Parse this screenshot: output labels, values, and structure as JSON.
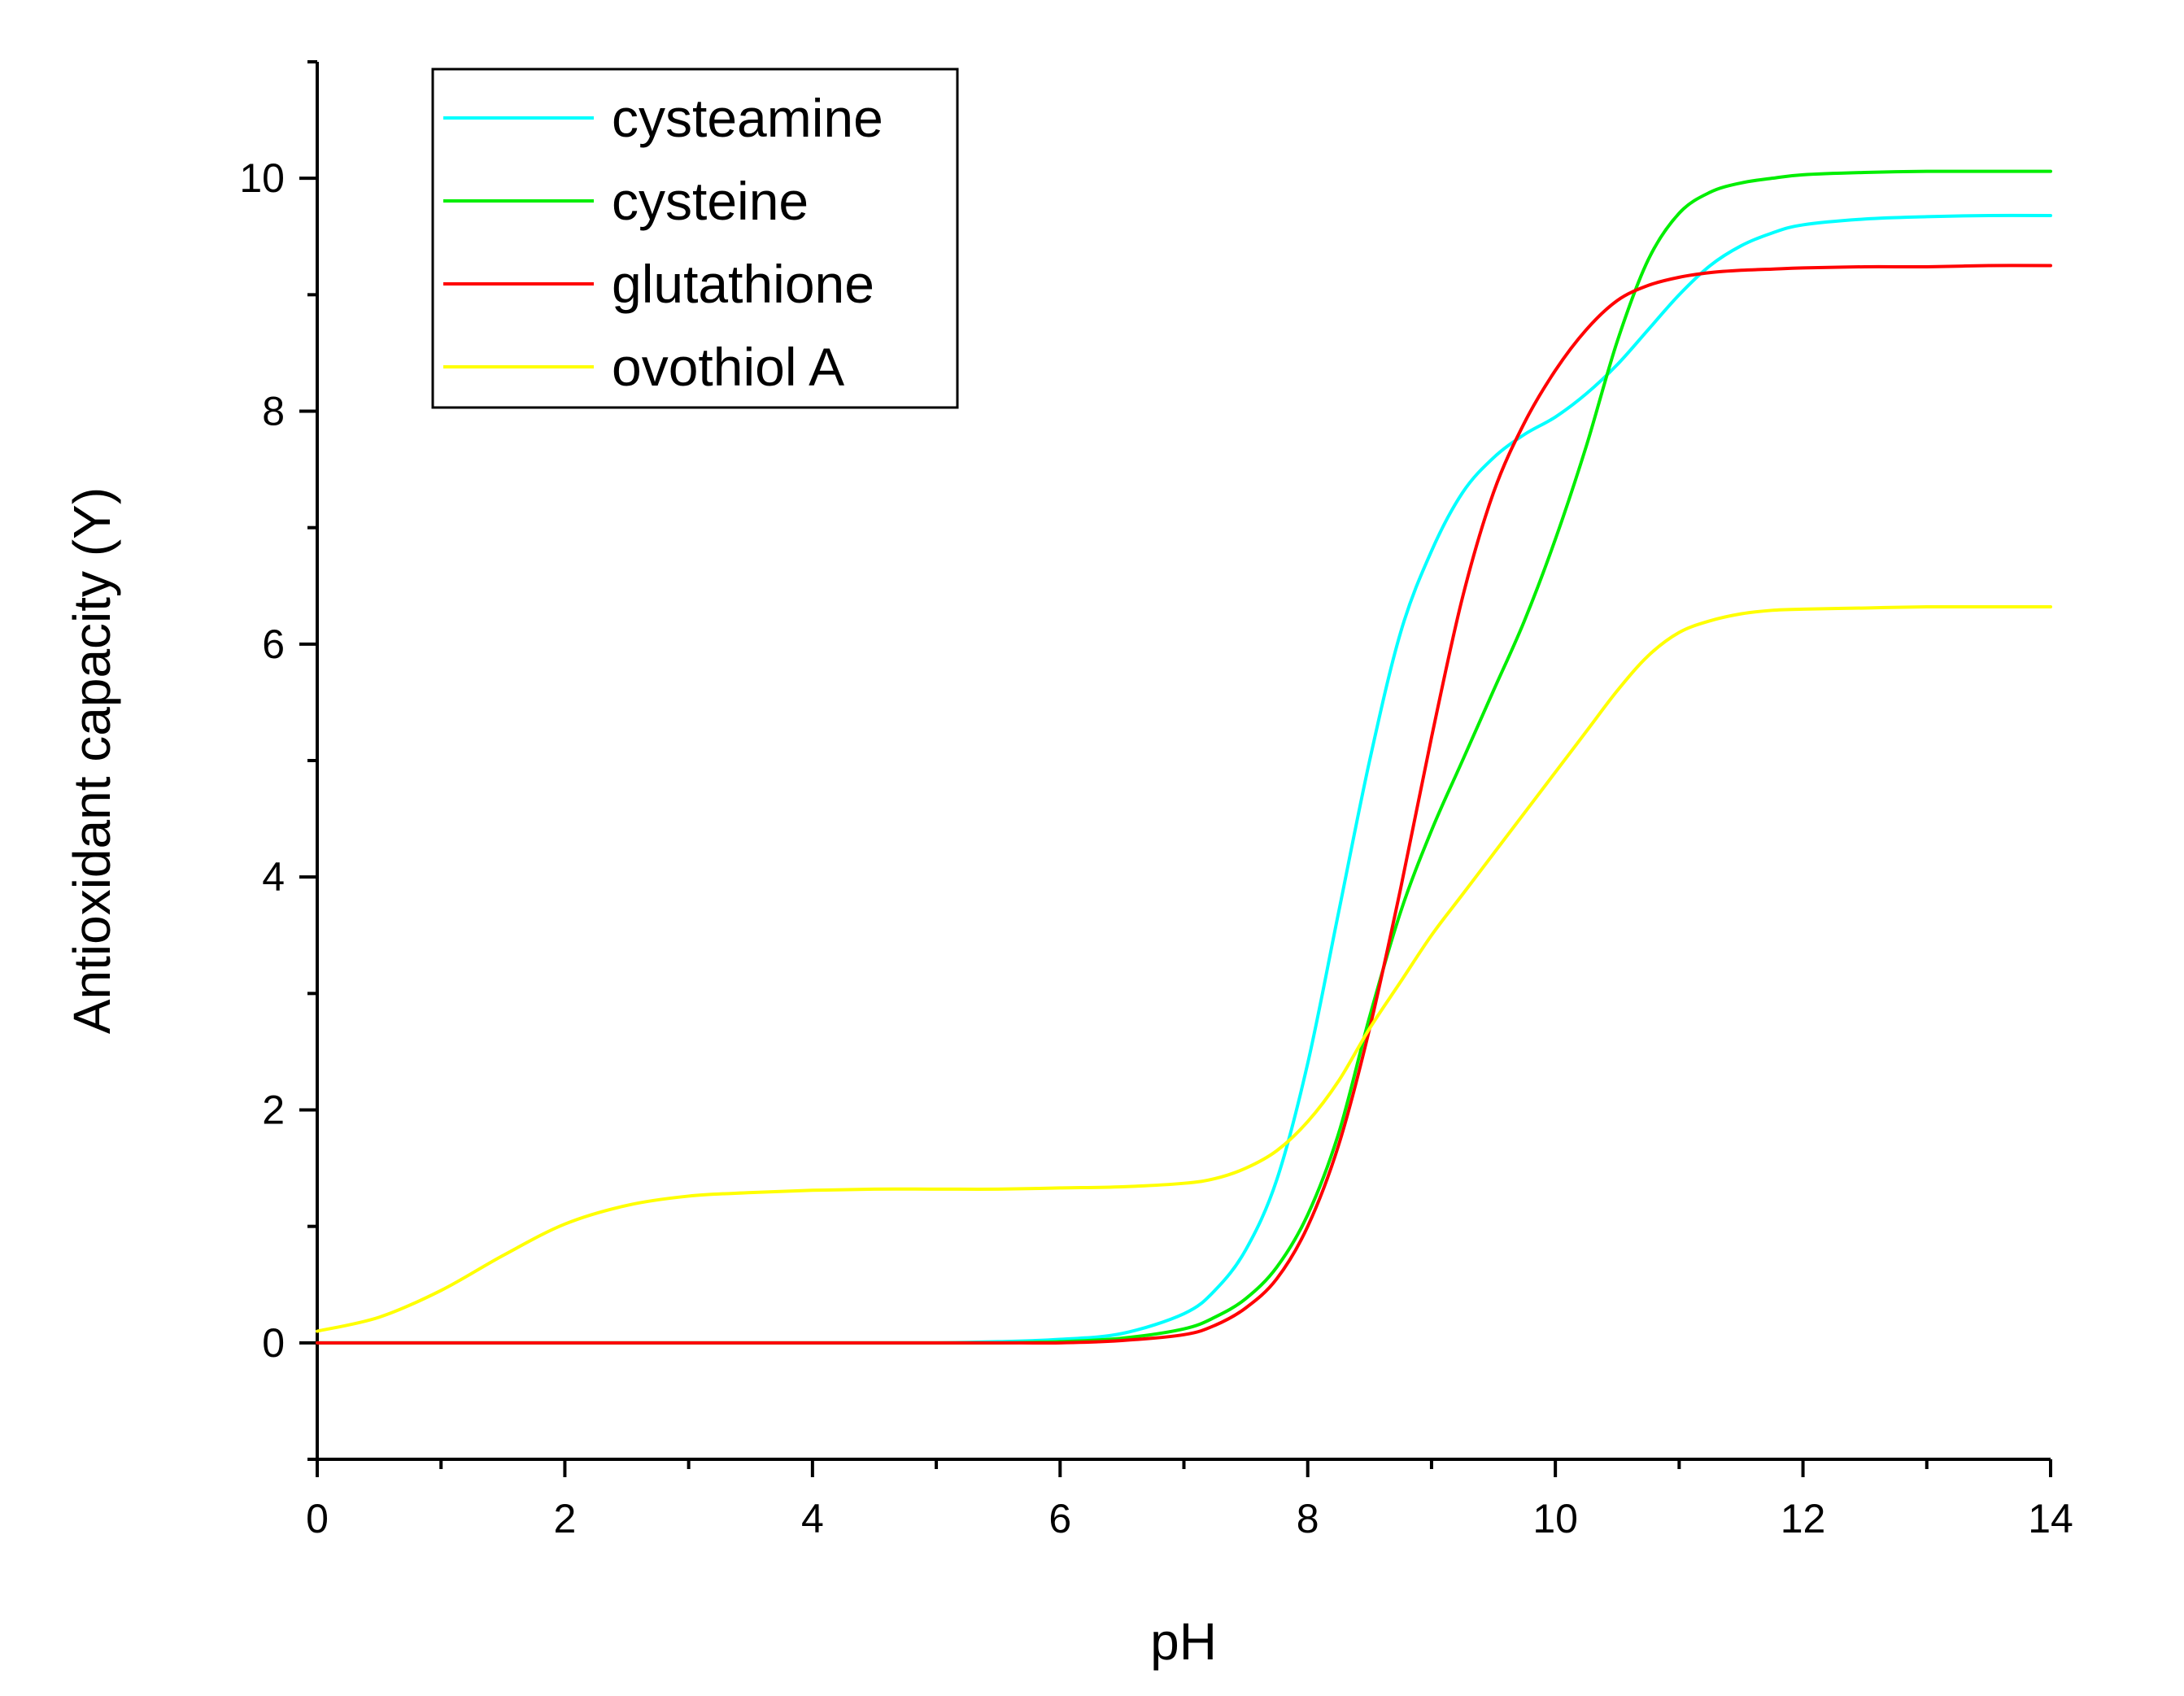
{
  "chart_data": {
    "type": "line",
    "title": "",
    "xlabel": "pH",
    "ylabel": "Antioxidant capacity (Y)",
    "xlim": [
      0,
      14
    ],
    "ylim": [
      -1,
      11
    ],
    "x_ticks": [
      0,
      2,
      4,
      6,
      8,
      10,
      12,
      14
    ],
    "x_tick_labels": [
      "0",
      "2",
      "4",
      "6",
      "8",
      "10",
      "12",
      "14"
    ],
    "x_minor_ticks": [
      1,
      3,
      5,
      7,
      9,
      11,
      13
    ],
    "y_ticks": [
      0,
      2,
      4,
      6,
      8,
      10
    ],
    "y_tick_labels": [
      "0",
      "2",
      "4",
      "6",
      "8",
      "10"
    ],
    "y_minor_ticks": [
      -1,
      1,
      3,
      5,
      7,
      9,
      11
    ],
    "grid": false,
    "legend_position": "top-left",
    "x": [
      0,
      0.5,
      1,
      1.5,
      2,
      2.5,
      3,
      3.5,
      4,
      4.5,
      5,
      5.5,
      6,
      6.5,
      7,
      7.25,
      7.5,
      7.75,
      8,
      8.25,
      8.5,
      8.75,
      9,
      9.25,
      9.5,
      9.75,
      10,
      10.25,
      10.5,
      10.75,
      11,
      11.25,
      11.5,
      11.75,
      12,
      12.5,
      13,
      13.5,
      14
    ],
    "series": [
      {
        "name": "cysteamine",
        "color": "#00ffff",
        "values": [
          0,
          0,
          0,
          0,
          0,
          0,
          0,
          0,
          0,
          0,
          0,
          0.01,
          0.03,
          0.08,
          0.25,
          0.45,
          0.8,
          1.4,
          2.4,
          3.7,
          5.0,
          6.1,
          6.8,
          7.3,
          7.6,
          7.8,
          7.95,
          8.15,
          8.4,
          8.7,
          9.0,
          9.25,
          9.42,
          9.53,
          9.6,
          9.65,
          9.67,
          9.68,
          9.68
        ]
      },
      {
        "name": "cysteine",
        "color": "#00ee00",
        "values": [
          0,
          0,
          0,
          0,
          0,
          0,
          0,
          0,
          0,
          0,
          0,
          0,
          0.01,
          0.04,
          0.12,
          0.22,
          0.38,
          0.65,
          1.1,
          1.8,
          2.8,
          3.7,
          4.4,
          5.0,
          5.6,
          6.2,
          6.9,
          7.7,
          8.6,
          9.3,
          9.7,
          9.88,
          9.96,
          10.0,
          10.03,
          10.05,
          10.06,
          10.06,
          10.06
        ]
      },
      {
        "name": "glutathione",
        "color": "#ff0000",
        "values": [
          0,
          0,
          0,
          0,
          0,
          0,
          0,
          0,
          0,
          0,
          0,
          0,
          0,
          0.02,
          0.07,
          0.15,
          0.3,
          0.55,
          1.0,
          1.7,
          2.7,
          3.9,
          5.2,
          6.4,
          7.3,
          7.9,
          8.35,
          8.7,
          8.95,
          9.08,
          9.15,
          9.19,
          9.21,
          9.22,
          9.23,
          9.24,
          9.24,
          9.25,
          9.25
        ]
      },
      {
        "name": "ovothiol A",
        "color": "#ffff00",
        "values": [
          0.1,
          0.22,
          0.45,
          0.75,
          1.02,
          1.18,
          1.26,
          1.29,
          1.31,
          1.32,
          1.32,
          1.32,
          1.33,
          1.34,
          1.37,
          1.41,
          1.5,
          1.65,
          1.9,
          2.25,
          2.7,
          3.1,
          3.5,
          3.85,
          4.2,
          4.55,
          4.9,
          5.25,
          5.6,
          5.9,
          6.1,
          6.2,
          6.26,
          6.29,
          6.3,
          6.31,
          6.32,
          6.32,
          6.32
        ]
      }
    ]
  }
}
